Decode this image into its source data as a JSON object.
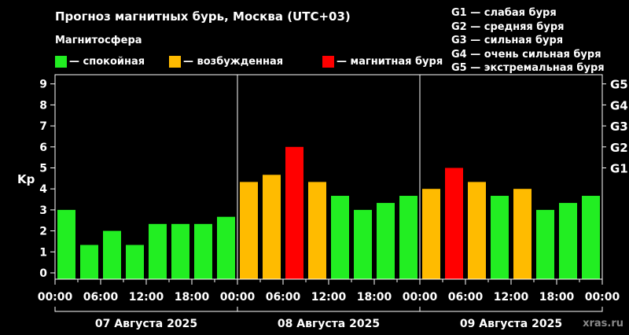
{
  "header": {
    "title": "Прогноз магнитных бурь, Москва (UTC+03)",
    "subtitle": "Магнитосфера"
  },
  "legend": [
    {
      "label": "— спокойная",
      "color": "#22ee22"
    },
    {
      "label": "— возбужденная",
      "color": "#ffbb00"
    },
    {
      "label": "— магнитная буря",
      "color": "#ff0000"
    }
  ],
  "g_legend": [
    "G1 — слабая буря",
    "G2 — средняя буря",
    "G3 — сильная буря",
    "G4 — очень сильная буря",
    "G5 — экстремальная буря"
  ],
  "watermark": "xras.ru",
  "chart_data": {
    "type": "bar",
    "ylabel": "Kp",
    "ylim": [
      0,
      9
    ],
    "y_ticks": [
      "0",
      "1",
      "2",
      "3",
      "4",
      "5",
      "6",
      "7",
      "8",
      "9"
    ],
    "g_ticks": [
      {
        "label": "G1",
        "kp": 5
      },
      {
        "label": "G2",
        "kp": 6
      },
      {
        "label": "G3",
        "kp": 7
      },
      {
        "label": "G4",
        "kp": 8
      },
      {
        "label": "G5",
        "kp": 9
      }
    ],
    "x_tick_labels": [
      "00:00",
      "06:00",
      "12:00",
      "18:00",
      "00:00",
      "06:00",
      "12:00",
      "18:00",
      "00:00",
      "06:00",
      "12:00",
      "18:00",
      "00:00"
    ],
    "days": [
      "07 Августа 2025",
      "08 Августа 2025",
      "09 Августа 2025"
    ],
    "values": [
      3.0,
      1.33,
      2.0,
      1.33,
      2.33,
      2.33,
      2.33,
      2.67,
      4.33,
      4.67,
      6.0,
      4.33,
      3.67,
      3.0,
      3.33,
      3.67,
      4.0,
      5.0,
      4.33,
      3.67,
      4.0,
      3.0,
      3.33,
      3.67
    ],
    "colors": {
      "calm": "#22ee22",
      "active": "#ffbb00",
      "storm": "#ff0000"
    },
    "grid": false
  }
}
